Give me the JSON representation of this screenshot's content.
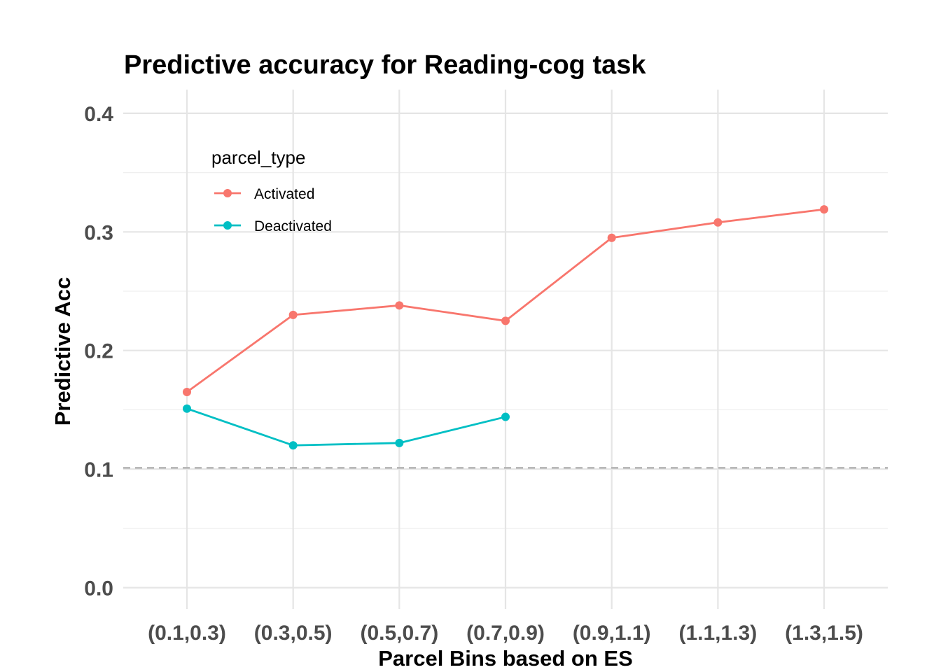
{
  "chart_data": {
    "type": "line",
    "title": "Predictive accuracy for Reading-cog task",
    "xlabel": "Parcel Bins based on ES",
    "ylabel": "Predictive Acc",
    "categories": [
      "(0.1,0.3)",
      "(0.3,0.5)",
      "(0.5,0.7)",
      "(0.7,0.9)",
      "(0.9,1.1)",
      "(1.1,1.3)",
      "(1.3,1.5)"
    ],
    "yticks": [
      0.0,
      0.1,
      0.2,
      0.3,
      0.4
    ],
    "ytick_labels": [
      "0.0",
      "0.1",
      "0.2",
      "0.3",
      "0.4"
    ],
    "ylim": [
      -0.018,
      0.42
    ],
    "grid": true,
    "legend": {
      "title": "parcel_type",
      "position": "top-left"
    },
    "reference_line": {
      "y": 0.101,
      "style": "dashed",
      "color": "#b3b3b3"
    },
    "series": [
      {
        "name": "Activated",
        "color": "#F8766D",
        "values": [
          0.165,
          0.23,
          0.238,
          0.225,
          0.295,
          0.308,
          0.319
        ]
      },
      {
        "name": "Deactivated",
        "color": "#00BFC4",
        "values": [
          0.151,
          0.12,
          0.122,
          0.144,
          null,
          null,
          null
        ]
      }
    ]
  }
}
